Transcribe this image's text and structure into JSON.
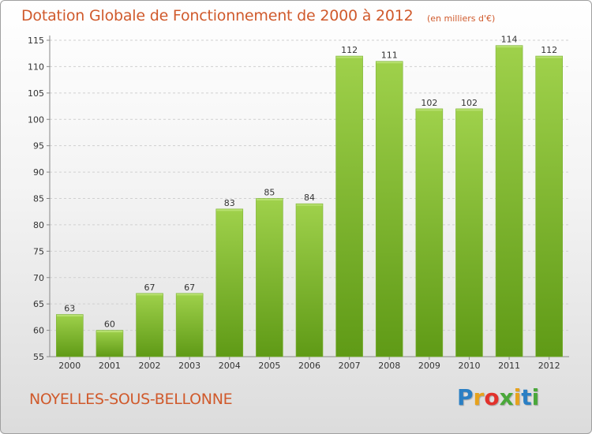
{
  "header": {
    "title": "Dotation Globale de Fonctionnement de 2000 à 2012",
    "subtitle": "(en milliers d'€)"
  },
  "footer": {
    "commune": "NOYELLES-SOUS-BELLONNE",
    "logo_letters": [
      "P",
      "r",
      "o",
      "x",
      "i",
      "t",
      "i"
    ]
  },
  "colors": {
    "bar_light": "#9fd14b",
    "bar_dark": "#5f9a16",
    "title": "#d05a2c",
    "grid": "#d0d0d0"
  },
  "chart_data": {
    "type": "bar",
    "title": "Dotation Globale de Fonctionnement de 2000 à 2012",
    "subtitle": "(en milliers d'€)",
    "xlabel": "",
    "ylabel": "",
    "categories": [
      "2000",
      "2001",
      "2002",
      "2003",
      "2004",
      "2005",
      "2006",
      "2007",
      "2008",
      "2009",
      "2010",
      "2011",
      "2012"
    ],
    "values": [
      63,
      60,
      67,
      67,
      83,
      85,
      84,
      112,
      111,
      102,
      102,
      114,
      112
    ],
    "ylim": [
      55,
      115
    ],
    "yticks": [
      55,
      60,
      65,
      70,
      75,
      80,
      85,
      90,
      95,
      100,
      105,
      110,
      115
    ],
    "grid": true,
    "legend": "none"
  }
}
